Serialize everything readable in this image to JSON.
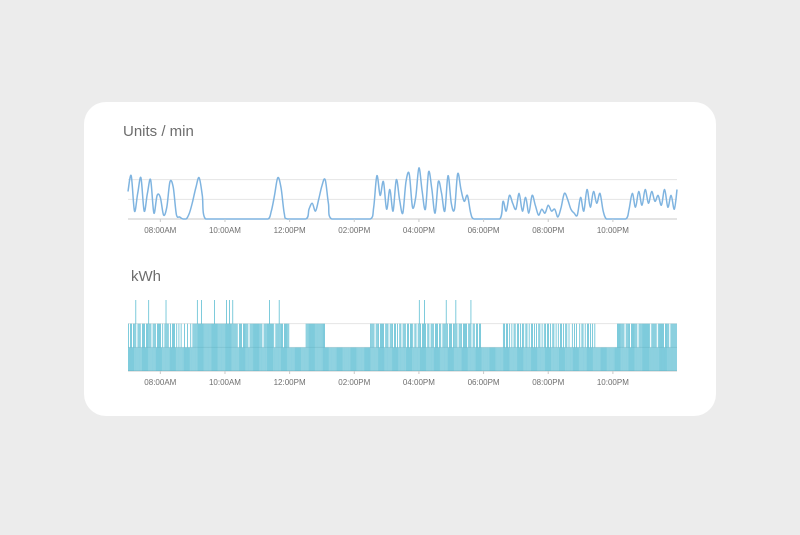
{
  "chart_data": [
    {
      "type": "line",
      "title": "Units / min",
      "color": "#7fb4e0",
      "x_range": [
        "07:00",
        "23:59"
      ],
      "x_ticks": [
        "08:00AM",
        "10:00AM",
        "12:00PM",
        "02:00PM",
        "04:00PM",
        "06:00PM",
        "08:00PM",
        "10:00PM"
      ],
      "ylim": [
        0,
        3
      ],
      "grid": true,
      "points": [
        [
          "07:00",
          1.4
        ],
        [
          "07:06",
          2.2
        ],
        [
          "07:12",
          0.4
        ],
        [
          "07:18",
          1.3
        ],
        [
          "07:24",
          2.1
        ],
        [
          "07:30",
          0.4
        ],
        [
          "07:36",
          1.3
        ],
        [
          "07:42",
          2.0
        ],
        [
          "07:48",
          0.3
        ],
        [
          "07:54",
          1.2
        ],
        [
          "08:00",
          1.1
        ],
        [
          "08:06",
          0.2
        ],
        [
          "08:12",
          0.6
        ],
        [
          "08:18",
          1.9
        ],
        [
          "08:24",
          1.6
        ],
        [
          "08:30",
          0.2
        ],
        [
          "08:36",
          0.1
        ],
        [
          "08:42",
          0.0
        ],
        [
          "08:48",
          0.0
        ],
        [
          "08:54",
          0.3
        ],
        [
          "09:00",
          0.9
        ],
        [
          "09:06",
          1.6
        ],
        [
          "09:12",
          2.1
        ],
        [
          "09:18",
          1.2
        ],
        [
          "09:24",
          0.0
        ],
        [
          "10:00",
          0.0
        ],
        [
          "11:00",
          0.0
        ],
        [
          "11:20",
          0.0
        ],
        [
          "11:26",
          0.4
        ],
        [
          "11:32",
          1.2
        ],
        [
          "11:38",
          2.1
        ],
        [
          "11:44",
          1.6
        ],
        [
          "11:50",
          0.3
        ],
        [
          "11:56",
          0.0
        ],
        [
          "12:30",
          0.0
        ],
        [
          "12:36",
          0.5
        ],
        [
          "12:42",
          0.8
        ],
        [
          "12:48",
          0.4
        ],
        [
          "12:54",
          1.0
        ],
        [
          "13:00",
          1.7
        ],
        [
          "13:06",
          2.0
        ],
        [
          "13:12",
          0.8
        ],
        [
          "13:18",
          0.0
        ],
        [
          "14:00",
          0.0
        ],
        [
          "14:30",
          0.0
        ],
        [
          "14:36",
          0.6
        ],
        [
          "14:42",
          2.2
        ],
        [
          "14:48",
          1.2
        ],
        [
          "14:54",
          1.9
        ],
        [
          "15:00",
          0.5
        ],
        [
          "15:06",
          1.5
        ],
        [
          "15:12",
          0.4
        ],
        [
          "15:18",
          2.0
        ],
        [
          "15:24",
          1.0
        ],
        [
          "15:30",
          0.3
        ],
        [
          "15:36",
          1.9
        ],
        [
          "15:42",
          2.3
        ],
        [
          "15:48",
          0.6
        ],
        [
          "15:54",
          1.1
        ],
        [
          "16:00",
          2.6
        ],
        [
          "16:06",
          1.4
        ],
        [
          "16:12",
          0.5
        ],
        [
          "16:18",
          2.4
        ],
        [
          "16:24",
          1.5
        ],
        [
          "16:30",
          0.3
        ],
        [
          "16:36",
          1.9
        ],
        [
          "16:42",
          1.3
        ],
        [
          "16:48",
          0.4
        ],
        [
          "16:54",
          2.2
        ],
        [
          "17:00",
          0.8
        ],
        [
          "17:06",
          0.5
        ],
        [
          "17:12",
          2.3
        ],
        [
          "17:18",
          1.5
        ],
        [
          "17:24",
          0.9
        ],
        [
          "17:30",
          1.2
        ],
        [
          "17:36",
          0.3
        ],
        [
          "17:42",
          0.0
        ],
        [
          "18:00",
          0.0
        ],
        [
          "18:30",
          0.0
        ],
        [
          "18:36",
          0.9
        ],
        [
          "18:42",
          0.4
        ],
        [
          "18:48",
          1.2
        ],
        [
          "18:54",
          0.8
        ],
        [
          "19:00",
          0.5
        ],
        [
          "19:06",
          1.3
        ],
        [
          "19:12",
          0.4
        ],
        [
          "19:18",
          1.1
        ],
        [
          "19:24",
          0.3
        ],
        [
          "19:30",
          1.2
        ],
        [
          "19:36",
          0.7
        ],
        [
          "19:42",
          0.2
        ],
        [
          "19:48",
          0.5
        ],
        [
          "19:54",
          0.3
        ],
        [
          "20:00",
          0.7
        ],
        [
          "20:06",
          0.4
        ],
        [
          "20:12",
          0.5
        ],
        [
          "20:18",
          0.1
        ],
        [
          "20:24",
          0.6
        ],
        [
          "20:30",
          1.3
        ],
        [
          "20:36",
          1.0
        ],
        [
          "20:42",
          0.5
        ],
        [
          "20:48",
          0.3
        ],
        [
          "20:54",
          0.2
        ],
        [
          "21:00",
          1.1
        ],
        [
          "21:06",
          0.4
        ],
        [
          "21:12",
          1.5
        ],
        [
          "21:18",
          0.6
        ],
        [
          "21:24",
          1.4
        ],
        [
          "21:30",
          0.8
        ],
        [
          "21:36",
          1.3
        ],
        [
          "21:42",
          0.4
        ],
        [
          "21:48",
          0.0
        ],
        [
          "22:00",
          0.0
        ],
        [
          "22:24",
          0.0
        ],
        [
          "22:30",
          0.5
        ],
        [
          "22:36",
          1.3
        ],
        [
          "22:42",
          0.6
        ],
        [
          "22:48",
          1.4
        ],
        [
          "22:54",
          0.7
        ],
        [
          "23:00",
          1.5
        ],
        [
          "23:06",
          0.8
        ],
        [
          "23:12",
          1.4
        ],
        [
          "23:18",
          0.9
        ],
        [
          "23:24",
          1.2
        ],
        [
          "23:30",
          0.7
        ],
        [
          "23:36",
          1.5
        ],
        [
          "23:42",
          0.6
        ],
        [
          "23:48",
          1.2
        ],
        [
          "23:54",
          0.5
        ],
        [
          "23:59",
          1.5
        ]
      ]
    },
    {
      "type": "bar",
      "title": "kWh",
      "color": "#2aa9c4",
      "x_range": [
        "07:00",
        "23:59"
      ],
      "x_ticks": [
        "08:00AM",
        "10:00AM",
        "12:00PM",
        "02:00PM",
        "04:00PM",
        "06:00PM",
        "08:00PM",
        "10:00PM"
      ],
      "ylim": [
        0,
        3
      ],
      "grid": true,
      "level_labels_note": "none printed",
      "segments": [
        {
          "from": "07:00",
          "to": "08:00",
          "values": [
            2,
            1,
            2,
            2,
            1,
            2,
            2,
            3,
            1,
            2,
            2,
            2,
            1,
            2,
            2,
            2,
            1,
            2,
            2,
            3,
            2,
            2,
            1,
            2,
            2,
            2,
            1,
            2,
            2,
            2
          ]
        },
        {
          "from": "08:00",
          "to": "09:00",
          "values": [
            2,
            1,
            2,
            1,
            2,
            3,
            2,
            2,
            1,
            2,
            1,
            2,
            2,
            2,
            1,
            2,
            1,
            2,
            1,
            2,
            1,
            1,
            2,
            1,
            1,
            2,
            1,
            1,
            2,
            1
          ]
        },
        {
          "from": "09:00",
          "to": "10:00",
          "values": [
            2,
            2,
            2,
            2,
            3,
            2,
            2,
            2,
            3,
            2,
            2,
            2,
            2,
            2,
            2,
            2,
            2,
            2,
            2,
            2,
            3,
            2,
            2,
            2,
            2,
            2,
            2,
            2,
            2,
            2
          ]
        },
        {
          "from": "10:00",
          "to": "11:00",
          "values": [
            2,
            3,
            2,
            2,
            3,
            2,
            2,
            3,
            2,
            2,
            2,
            2,
            1,
            2,
            2,
            2,
            1,
            2,
            2,
            2,
            2,
            2,
            1,
            2,
            2,
            2,
            2,
            2,
            2,
            2
          ]
        },
        {
          "from": "11:00",
          "to": "12:00",
          "values": [
            2,
            2,
            2,
            2,
            2,
            1,
            2,
            2,
            2,
            2,
            2,
            3,
            2,
            2,
            2,
            2,
            1,
            2,
            2,
            2,
            3,
            2,
            2,
            2,
            1,
            2,
            2,
            2,
            2,
            2
          ]
        },
        {
          "from": "12:00",
          "to": "13:00",
          "values": [
            1,
            1,
            1,
            1,
            1,
            1,
            1,
            1,
            1,
            1,
            1,
            1,
            1,
            1,
            1,
            2,
            2,
            2,
            2,
            2,
            2,
            2,
            2,
            2,
            2,
            2,
            2,
            2,
            2,
            2
          ]
        },
        {
          "from": "13:00",
          "to": "14:00",
          "values": [
            2,
            2,
            2,
            1,
            1,
            1,
            1,
            1,
            1,
            1,
            1,
            1,
            1,
            1,
            1,
            1,
            1,
            1,
            1,
            1,
            1,
            1,
            1,
            1,
            1,
            1,
            1,
            1,
            1,
            1
          ]
        },
        {
          "from": "14:00",
          "to": "15:00",
          "values": [
            1,
            1,
            1,
            1,
            1,
            1,
            1,
            1,
            1,
            1,
            1,
            1,
            1,
            1,
            1,
            2,
            2,
            2,
            2,
            1,
            2,
            2,
            2,
            1,
            2,
            2,
            2,
            2,
            1,
            2
          ]
        },
        {
          "from": "15:00",
          "to": "16:00",
          "values": [
            2,
            2,
            1,
            2,
            2,
            2,
            1,
            2,
            2,
            1,
            2,
            1,
            2,
            2,
            1,
            2,
            2,
            2,
            1,
            2,
            2,
            1,
            2,
            2,
            2,
            1,
            2,
            2,
            1,
            2
          ]
        },
        {
          "from": "16:00",
          "to": "17:00",
          "values": [
            3,
            2,
            1,
            2,
            2,
            3,
            2,
            1,
            2,
            2,
            1,
            2,
            2,
            2,
            1,
            2,
            2,
            2,
            1,
            2,
            2,
            1,
            2,
            2,
            2,
            3,
            2,
            1,
            2,
            2
          ]
        },
        {
          "from": "17:00",
          "to": "18:00",
          "values": [
            2,
            1,
            2,
            2,
            3,
            2,
            1,
            2,
            2,
            2,
            1,
            2,
            2,
            2,
            2,
            1,
            2,
            2,
            3,
            1,
            2,
            2,
            1,
            2,
            2,
            1,
            2,
            2,
            1,
            1
          ]
        },
        {
          "from": "18:00",
          "to": "19:00",
          "values": [
            1,
            1,
            1,
            1,
            1,
            1,
            1,
            1,
            1,
            1,
            1,
            1,
            1,
            1,
            1,
            1,
            1,
            1,
            2,
            2,
            1,
            2,
            2,
            1,
            2,
            1,
            2,
            1,
            2,
            2
          ]
        },
        {
          "from": "19:00",
          "to": "20:00",
          "values": [
            1,
            2,
            2,
            1,
            2,
            1,
            2,
            2,
            1,
            2,
            2,
            1,
            2,
            1,
            2,
            2,
            1,
            2,
            1,
            2,
            1,
            2,
            2,
            1,
            2,
            1,
            2,
            2,
            1,
            2
          ]
        },
        {
          "from": "20:00",
          "to": "21:00",
          "values": [
            2,
            1,
            2,
            1,
            2,
            2,
            1,
            2,
            1,
            2,
            1,
            2,
            2,
            1,
            2,
            1,
            2,
            2,
            1,
            2,
            1,
            1,
            2,
            1,
            2,
            1,
            2,
            1,
            1,
            2
          ]
        },
        {
          "from": "21:00",
          "to": "22:00",
          "values": [
            1,
            2,
            2,
            1,
            2,
            1,
            2,
            2,
            1,
            2,
            1,
            2,
            1,
            2,
            1,
            1,
            1,
            1,
            1,
            1,
            1,
            1,
            1,
            1,
            1,
            1,
            1,
            1,
            1,
            1
          ]
        },
        {
          "from": "22:00",
          "to": "23:00",
          "values": [
            1,
            1,
            1,
            1,
            2,
            2,
            2,
            2,
            2,
            2,
            2,
            1,
            2,
            2,
            2,
            2,
            1,
            2,
            2,
            2,
            2,
            2,
            2,
            1,
            2,
            2,
            2,
            2,
            2,
            2
          ]
        },
        {
          "from": "23:00",
          "to": "23:59",
          "values": [
            2,
            2,
            2,
            2,
            2,
            1,
            2,
            2,
            2,
            2,
            2,
            1,
            2,
            2,
            2,
            2,
            2,
            2,
            1,
            2,
            2,
            2,
            2,
            1,
            2,
            2,
            2,
            2,
            2,
            2
          ]
        }
      ]
    }
  ]
}
